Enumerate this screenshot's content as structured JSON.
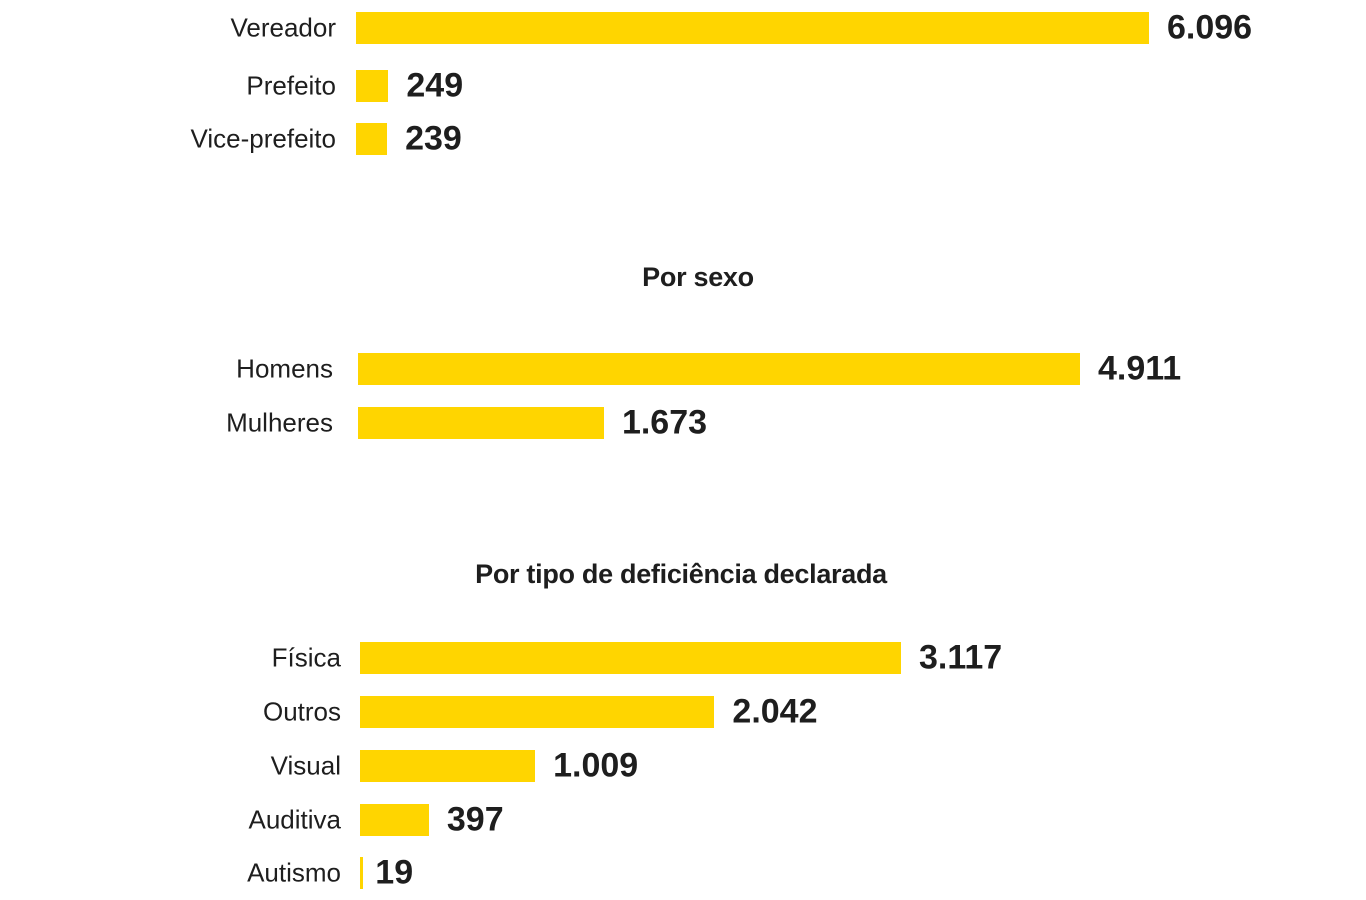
{
  "colors": {
    "bar": "#ffd500",
    "text": "#1e1e1e"
  },
  "chart_data": [
    {
      "type": "bar",
      "orientation": "horizontal",
      "title": "",
      "categories": [
        "Vereador",
        "Prefeito",
        "Vice-prefeito"
      ],
      "values": [
        6096,
        249,
        239
      ],
      "value_labels": [
        "6.096",
        "249",
        "239"
      ]
    },
    {
      "type": "bar",
      "orientation": "horizontal",
      "title": "Por sexo",
      "categories": [
        "Homens",
        "Mulheres"
      ],
      "values": [
        4911,
        1673
      ],
      "value_labels": [
        "4.911",
        "1.673"
      ]
    },
    {
      "type": "bar",
      "orientation": "horizontal",
      "title": "Por tipo de deficiência declarada",
      "categories": [
        "Física",
        "Outros",
        "Visual",
        "Auditiva",
        "Autismo"
      ],
      "values": [
        3117,
        2042,
        1009,
        397,
        19
      ],
      "value_labels": [
        "3.117",
        "2.042",
        "1.009",
        "397",
        "19"
      ]
    }
  ]
}
